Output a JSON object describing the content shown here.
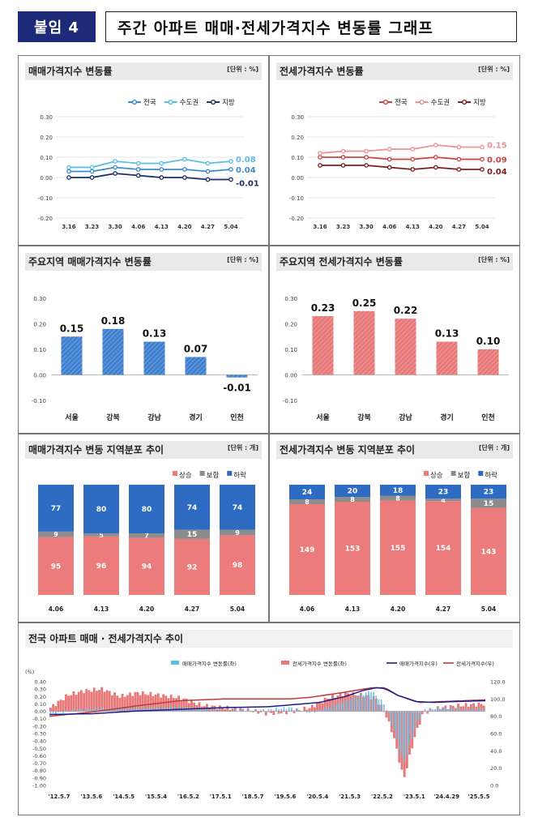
{
  "header": {
    "badge": "붙임 4",
    "title": "주간 아파트 매매·전세가격지수 변동률 그래프"
  },
  "colors": {
    "nat_sale": "#3c8cc8",
    "cap_sale": "#5bbde6",
    "reg_sale": "#1c2f66",
    "nat_rent": "#c64545",
    "cap_rent": "#ec9191",
    "reg_rent": "#7a1f1f",
    "blue_bar": "#3f7fd0",
    "red_bar": "#e87878",
    "rise": "#ec7b7b",
    "flat": "#8c8c8c",
    "fall": "#2e6cc4"
  },
  "panels": {
    "p1": {
      "title": "매매가격지수 변동률",
      "unit": "[단위 : %]"
    },
    "p2": {
      "title": "전세가격지수 변동률",
      "unit": "[단위 : %]"
    },
    "p3": {
      "title": "주요지역 매매가격지수 변동률",
      "unit": "[단위 : %]"
    },
    "p4": {
      "title": "주요지역 전세가격지수 변동률",
      "unit": "[단위 : %]"
    },
    "p5": {
      "title": "매매가격지수 변동 지역분포 추이",
      "unit": "[단위 : 개]"
    },
    "p6": {
      "title": "전세가격지수 변동 지역분포 추이",
      "unit": "[단위 : 개]"
    },
    "p7": {
      "title": "전국 아파트 매매 · 전세가격지수 추이"
    }
  },
  "chart_data": [
    {
      "type": "line",
      "title": "매매가격지수 변동률",
      "x": [
        "3.16",
        "3.23",
        "3.30",
        "4.06",
        "4.13",
        "4.20",
        "4.27",
        "5.04"
      ],
      "ylim": [
        -0.2,
        0.3
      ],
      "yticks": [
        "0.30",
        "0.20",
        "0.10",
        "0.00",
        "-0.10",
        "-0.20"
      ],
      "series": [
        {
          "name": "전국",
          "values": [
            0.03,
            0.03,
            0.05,
            0.04,
            0.04,
            0.04,
            0.03,
            0.04
          ],
          "end_label": "0.04"
        },
        {
          "name": "수도권",
          "values": [
            0.05,
            0.05,
            0.08,
            0.07,
            0.07,
            0.09,
            0.07,
            0.08
          ],
          "end_label": "0.08"
        },
        {
          "name": "지방",
          "values": [
            0.0,
            0.0,
            0.02,
            0.01,
            0.0,
            0.0,
            -0.01,
            -0.01
          ],
          "end_label": "-0.01"
        }
      ]
    },
    {
      "type": "line",
      "title": "전세가격지수 변동률",
      "x": [
        "3.16",
        "3.23",
        "3.30",
        "4.06",
        "4.13",
        "4.20",
        "4.27",
        "5.04"
      ],
      "ylim": [
        -0.2,
        0.3
      ],
      "yticks": [
        "0.30",
        "0.20",
        "0.10",
        "0.00",
        "-0.10",
        "-0.20"
      ],
      "series": [
        {
          "name": "전국",
          "values": [
            0.1,
            0.1,
            0.1,
            0.09,
            0.09,
            0.1,
            0.09,
            0.09
          ],
          "end_label": "0.09"
        },
        {
          "name": "수도권",
          "values": [
            0.12,
            0.13,
            0.13,
            0.14,
            0.14,
            0.16,
            0.15,
            0.15
          ],
          "end_label": "0.15"
        },
        {
          "name": "지방",
          "values": [
            0.06,
            0.06,
            0.06,
            0.05,
            0.04,
            0.05,
            0.04,
            0.04
          ],
          "end_label": "0.04"
        }
      ]
    },
    {
      "type": "bar",
      "title": "주요지역 매매가격지수 변동률",
      "categories": [
        "서울",
        "강북",
        "강남",
        "경기",
        "인천"
      ],
      "values": [
        0.15,
        0.18,
        0.13,
        0.07,
        -0.01
      ],
      "labels": [
        "0.15",
        "0.18",
        "0.13",
        "0.07",
        "-0.01"
      ],
      "ylim": [
        -0.1,
        0.3
      ],
      "yticks": [
        "0.30",
        "0.20",
        "0.10",
        "0.00",
        "-0.10"
      ]
    },
    {
      "type": "bar",
      "title": "주요지역 전세가격지수 변동률",
      "categories": [
        "서울",
        "강북",
        "강남",
        "경기",
        "인천"
      ],
      "values": [
        0.23,
        0.25,
        0.22,
        0.13,
        0.1
      ],
      "labels": [
        "0.23",
        "0.25",
        "0.22",
        "0.13",
        "0.10"
      ],
      "ylim": [
        -0.1,
        0.3
      ],
      "yticks": [
        "0.30",
        "0.20",
        "0.10",
        "0.00",
        "-0.10"
      ]
    },
    {
      "type": "bar",
      "title": "매매가격지수 변동 지역분포 추이",
      "categories": [
        "4.06",
        "4.13",
        "4.20",
        "4.27",
        "5.04"
      ],
      "series": [
        {
          "name": "상승",
          "values": [
            95,
            96,
            94,
            92,
            98
          ]
        },
        {
          "name": "보합",
          "values": [
            9,
            5,
            7,
            15,
            9
          ]
        },
        {
          "name": "하락",
          "values": [
            77,
            80,
            80,
            74,
            74
          ]
        }
      ]
    },
    {
      "type": "bar",
      "title": "전세가격지수 변동 지역분포 추이",
      "categories": [
        "4.06",
        "4.13",
        "4.20",
        "4.27",
        "5.04"
      ],
      "series": [
        {
          "name": "상승",
          "values": [
            149,
            153,
            155,
            154,
            143
          ]
        },
        {
          "name": "보합",
          "values": [
            8,
            8,
            8,
            4,
            15
          ]
        },
        {
          "name": "하락",
          "values": [
            24,
            20,
            18,
            23,
            23
          ]
        }
      ]
    },
    {
      "type": "line",
      "title": "전국 아파트 매매 · 전세가격지수 추이",
      "left_unit": "(%)",
      "left_ticks": [
        "0.40",
        "0.30",
        "0.20",
        "0.10",
        "0.00",
        "-0.10",
        "-0.20",
        "-0.30",
        "-0.40",
        "-0.50",
        "-0.60",
        "-0.70",
        "-0.80",
        "-0.90",
        "-1.00"
      ],
      "right_ticks": [
        "120.0",
        "100.0",
        "80.0",
        "60.0",
        "40.0",
        "20.0",
        "0.0"
      ],
      "x_labels": [
        "'12.5.7",
        "'13.5.6",
        "'14.5.5",
        "'15.5.4",
        "'16.5.2",
        "'17.5.1",
        "'18.5.7",
        "'19.5.6",
        "'20.5.4",
        "'21.5.3",
        "'22.5.2",
        "'23.5.1",
        "'24.4.29",
        "'25.5.5"
      ],
      "series": [
        {
          "name": "매매가격지수 변동률(좌)",
          "type": "bar"
        },
        {
          "name": "전세가격지수 변동률(좌)",
          "type": "bar"
        },
        {
          "name": "매매가격지수(우)",
          "type": "line",
          "anchors": [
            [
              0,
              82
            ],
            [
              0.1,
              83
            ],
            [
              0.2,
              86
            ],
            [
              0.3,
              88
            ],
            [
              0.4,
              90
            ],
            [
              0.5,
              91
            ],
            [
              0.55,
              93
            ],
            [
              0.62,
              96
            ],
            [
              0.68,
              103
            ],
            [
              0.72,
              110
            ],
            [
              0.75,
              113
            ],
            [
              0.77,
              112
            ],
            [
              0.8,
              104
            ],
            [
              0.84,
              97
            ],
            [
              0.88,
              96
            ],
            [
              0.93,
              97
            ],
            [
              1,
              98
            ]
          ]
        },
        {
          "name": "전세가격지수(우)",
          "type": "line",
          "anchors": [
            [
              0,
              80
            ],
            [
              0.1,
              85
            ],
            [
              0.2,
              92
            ],
            [
              0.3,
              98
            ],
            [
              0.4,
              100
            ],
            [
              0.5,
              100
            ],
            [
              0.55,
              100
            ],
            [
              0.6,
              102
            ],
            [
              0.68,
              108
            ],
            [
              0.74,
              113
            ],
            [
              0.77,
              113
            ],
            [
              0.8,
              104
            ],
            [
              0.85,
              96
            ],
            [
              0.9,
              97
            ],
            [
              0.95,
              98
            ],
            [
              1,
              99
            ]
          ]
        }
      ],
      "sale_rate_anchors": [
        [
          0,
          -0.05
        ],
        [
          0.05,
          0.02
        ],
        [
          0.1,
          0.04
        ],
        [
          0.2,
          0.05
        ],
        [
          0.3,
          0.06
        ],
        [
          0.4,
          0.01
        ],
        [
          0.5,
          0.02
        ],
        [
          0.55,
          0.05
        ],
        [
          0.6,
          -0.02
        ],
        [
          0.65,
          0.08
        ],
        [
          0.7,
          0.18
        ],
        [
          0.74,
          0.28
        ],
        [
          0.77,
          0.1
        ],
        [
          0.79,
          -0.2
        ],
        [
          0.815,
          -0.72
        ],
        [
          0.84,
          -0.25
        ],
        [
          0.86,
          0.02
        ],
        [
          0.9,
          0.05
        ],
        [
          0.95,
          0.03
        ],
        [
          1,
          0.04
        ]
      ],
      "rent_rate_anchors": [
        [
          0,
          0.05
        ],
        [
          0.04,
          0.22
        ],
        [
          0.08,
          0.28
        ],
        [
          0.12,
          0.3
        ],
        [
          0.16,
          0.2
        ],
        [
          0.2,
          0.25
        ],
        [
          0.25,
          0.22
        ],
        [
          0.3,
          0.18
        ],
        [
          0.35,
          0.08
        ],
        [
          0.4,
          0.05
        ],
        [
          0.45,
          0.02
        ],
        [
          0.5,
          -0.03
        ],
        [
          0.55,
          -0.01
        ],
        [
          0.6,
          0.05
        ],
        [
          0.64,
          0.18
        ],
        [
          0.68,
          0.24
        ],
        [
          0.72,
          0.22
        ],
        [
          0.75,
          0.18
        ],
        [
          0.77,
          0.0
        ],
        [
          0.79,
          -0.3
        ],
        [
          0.815,
          -0.92
        ],
        [
          0.84,
          -0.35
        ],
        [
          0.86,
          -0.02
        ],
        [
          0.9,
          0.05
        ],
        [
          0.95,
          0.08
        ],
        [
          1,
          0.1
        ]
      ]
    }
  ]
}
